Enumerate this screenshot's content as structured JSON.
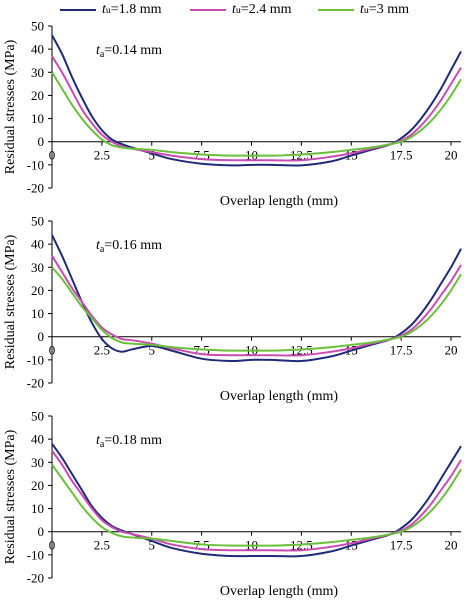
{
  "colors": {
    "t18": "#1f2a78",
    "t24": "#c94bb4",
    "t30": "#6bbf3a"
  },
  "legend": [
    {
      "var": "t",
      "sub": "u",
      "value": "=1.8 mm",
      "color": "#1f2a78"
    },
    {
      "var": "t",
      "sub": "u",
      "value": "=2.4 mm",
      "color": "#c94bb4"
    },
    {
      "var": "t",
      "sub": "u",
      "value": "=3 mm",
      "color": "#6bbf3a"
    }
  ],
  "chart_data": [
    {
      "type": "line",
      "annotation": {
        "var": "t",
        "sub": "a",
        "value": "=0.14 mm"
      },
      "xlabel": "Overlap length (mm)",
      "ylabel": "Residual stresses (MPa)",
      "xlim": [
        0,
        20.5
      ],
      "ylim": [
        -20,
        50
      ],
      "xticks": [
        "0",
        "2.5",
        "5",
        "7.5",
        "10",
        "12.5",
        "15",
        "17.5",
        "20"
      ],
      "yticks": [
        "50",
        "40",
        "30",
        "20",
        "10",
        "0",
        "-10",
        "-20"
      ],
      "series": [
        {
          "name": "tu=1.8 mm",
          "color": "#1f2a78",
          "x": [
            0,
            0.5,
            1,
            1.5,
            2,
            2.5,
            3,
            3.5,
            4,
            5,
            6,
            7.5,
            9,
            10,
            11,
            12.5,
            14,
            15,
            16,
            17,
            17.5,
            18,
            18.5,
            19,
            19.5,
            20,
            20.5
          ],
          "y": [
            46,
            38,
            28,
            19,
            11,
            5,
            1,
            -1,
            -2.5,
            -5,
            -7.5,
            -9.5,
            -10.2,
            -10,
            -10,
            -10.2,
            -8.5,
            -6,
            -3.5,
            -1,
            1.5,
            5,
            10,
            16,
            23,
            31,
            39
          ]
        },
        {
          "name": "tu=2.4 mm",
          "color": "#c94bb4",
          "x": [
            0,
            0.5,
            1,
            1.5,
            2,
            2.5,
            3,
            3.5,
            4,
            5,
            6,
            7.5,
            9,
            10,
            11,
            12.5,
            14,
            15,
            16,
            17,
            17.5,
            18,
            18.5,
            19,
            19.5,
            20,
            20.5
          ],
          "y": [
            37,
            30,
            22,
            14,
            8,
            3,
            0,
            -2,
            -3,
            -4.5,
            -6,
            -7.5,
            -8,
            -8,
            -8,
            -8,
            -6.5,
            -5,
            -3,
            -1,
            0.5,
            3,
            7,
            12,
            18,
            25,
            32
          ]
        },
        {
          "name": "tu=3 mm",
          "color": "#6bbf3a",
          "x": [
            0,
            0.5,
            1,
            1.5,
            2,
            2.5,
            3,
            3.5,
            4,
            5,
            6,
            7.5,
            9,
            10,
            11,
            12.5,
            14,
            15,
            16,
            17,
            17.5,
            18,
            18.5,
            19,
            19.5,
            20,
            20.5
          ],
          "y": [
            30,
            23,
            16,
            10,
            5,
            1,
            -1.5,
            -2.5,
            -3,
            -3.5,
            -4.5,
            -5.5,
            -6,
            -6,
            -6,
            -5.5,
            -4.5,
            -3.5,
            -2.5,
            -1,
            0,
            2,
            5,
            9,
            14,
            20,
            27
          ]
        }
      ]
    },
    {
      "type": "line",
      "annotation": {
        "var": "t",
        "sub": "a",
        "value": "=0.16 mm"
      },
      "xlabel": "Overlap length (mm)",
      "ylabel": "Residual stresses (MPa)",
      "xlim": [
        0,
        20.5
      ],
      "ylim": [
        -20,
        50
      ],
      "xticks": [
        "0",
        "2.5",
        "5",
        "7.5",
        "10",
        "12.5",
        "15",
        "17.5",
        "20"
      ],
      "yticks": [
        "50",
        "40",
        "30",
        "20",
        "10",
        "0",
        "-10",
        "-20"
      ],
      "series": [
        {
          "name": "tu=1.8 mm",
          "color": "#1f2a78",
          "x": [
            0,
            0.5,
            1,
            1.5,
            2,
            2.5,
            3,
            3.5,
            4,
            5,
            6,
            7.5,
            9,
            10,
            11,
            12.5,
            14,
            15,
            16,
            17,
            17.5,
            18,
            18.5,
            19,
            19.5,
            20,
            20.5
          ],
          "y": [
            44,
            35,
            25,
            15,
            6,
            -1,
            -5,
            -6.5,
            -5.5,
            -4,
            -6,
            -9.5,
            -10.5,
            -10,
            -10,
            -10.5,
            -8.5,
            -6,
            -3.5,
            -1,
            1.5,
            5,
            10,
            16,
            23,
            30,
            38
          ]
        },
        {
          "name": "tu=2.4 mm",
          "color": "#c94bb4",
          "x": [
            0,
            0.5,
            1,
            1.5,
            2,
            2.5,
            3,
            3.5,
            4,
            5,
            6,
            7.5,
            9,
            10,
            11,
            12.5,
            14,
            15,
            16,
            17,
            17.5,
            18,
            18.5,
            19,
            19.5,
            20,
            20.5
          ],
          "y": [
            35,
            28,
            21,
            15,
            9,
            4,
            1,
            -1,
            -1.5,
            -3,
            -5,
            -7.5,
            -8,
            -8,
            -8,
            -8,
            -6.5,
            -5,
            -3,
            -1,
            0.5,
            3,
            7,
            12,
            18,
            24,
            31
          ]
        },
        {
          "name": "tu=3 mm",
          "color": "#6bbf3a",
          "x": [
            0,
            0.5,
            1,
            1.5,
            2,
            2.5,
            3,
            3.5,
            4,
            5,
            6,
            7.5,
            9,
            10,
            11,
            12.5,
            14,
            15,
            16,
            17,
            17.5,
            18,
            18.5,
            19,
            19.5,
            20,
            20.5
          ],
          "y": [
            30,
            25,
            19,
            13,
            8,
            3,
            -0.5,
            -2.5,
            -3,
            -3.5,
            -4.5,
            -5.5,
            -6,
            -6,
            -6,
            -5.5,
            -4.5,
            -3.5,
            -2.5,
            -1,
            0,
            2,
            5,
            9,
            14,
            20,
            27
          ]
        }
      ]
    },
    {
      "type": "line",
      "annotation": {
        "var": "t",
        "sub": "a",
        "value": "=0.18 mm"
      },
      "xlabel": "Overlap length (mm)",
      "ylabel": "Residual stresses (MPa)",
      "xlim": [
        0,
        20.5
      ],
      "ylim": [
        -20,
        50
      ],
      "xticks": [
        "0",
        "2.5",
        "5",
        "7.5",
        "10",
        "12.5",
        "15",
        "17.5",
        "20"
      ],
      "yticks": [
        "50",
        "40",
        "30",
        "20",
        "10",
        "0",
        "-10",
        "-20"
      ],
      "series": [
        {
          "name": "tu=1.8 mm",
          "color": "#1f2a78",
          "x": [
            0,
            0.5,
            1,
            1.5,
            2,
            2.5,
            3,
            3.5,
            4,
            5,
            6,
            7.5,
            9,
            10,
            11,
            12.5,
            14,
            15,
            16,
            17,
            17.5,
            18,
            18.5,
            19,
            19.5,
            20,
            20.5
          ],
          "y": [
            38,
            32,
            25,
            18,
            11,
            6,
            2.5,
            0.5,
            -1,
            -4,
            -7,
            -9.5,
            -10.5,
            -10.5,
            -10.5,
            -10.5,
            -8.5,
            -6,
            -3.5,
            -1,
            1.5,
            5,
            10,
            16,
            23,
            30,
            37
          ]
        },
        {
          "name": "tu=2.4 mm",
          "color": "#c94bb4",
          "x": [
            0,
            0.5,
            1,
            1.5,
            2,
            2.5,
            3,
            3.5,
            4,
            5,
            6,
            7.5,
            9,
            10,
            11,
            12.5,
            14,
            15,
            16,
            17,
            17.5,
            18,
            18.5,
            19,
            19.5,
            20,
            20.5
          ],
          "y": [
            35,
            29,
            22,
            16,
            10,
            5,
            2,
            0,
            -1,
            -3,
            -5.5,
            -7.5,
            -8,
            -8,
            -8,
            -8,
            -6.5,
            -5,
            -3,
            -1,
            0.5,
            3,
            7,
            12,
            18,
            24,
            31
          ]
        },
        {
          "name": "tu=3 mm",
          "color": "#6bbf3a",
          "x": [
            0,
            0.5,
            1,
            1.5,
            2,
            2.5,
            3,
            3.5,
            4,
            5,
            6,
            7.5,
            9,
            10,
            11,
            12.5,
            14,
            15,
            16,
            17,
            17.5,
            18,
            18.5,
            19,
            19.5,
            20,
            20.5
          ],
          "y": [
            29,
            23,
            17,
            11,
            6,
            2,
            -0.5,
            -2,
            -2.5,
            -3,
            -4,
            -5.5,
            -6,
            -6,
            -6,
            -5.5,
            -4.5,
            -3.5,
            -2.5,
            -1,
            0,
            2,
            5,
            9,
            14,
            20,
            27
          ]
        }
      ]
    }
  ]
}
